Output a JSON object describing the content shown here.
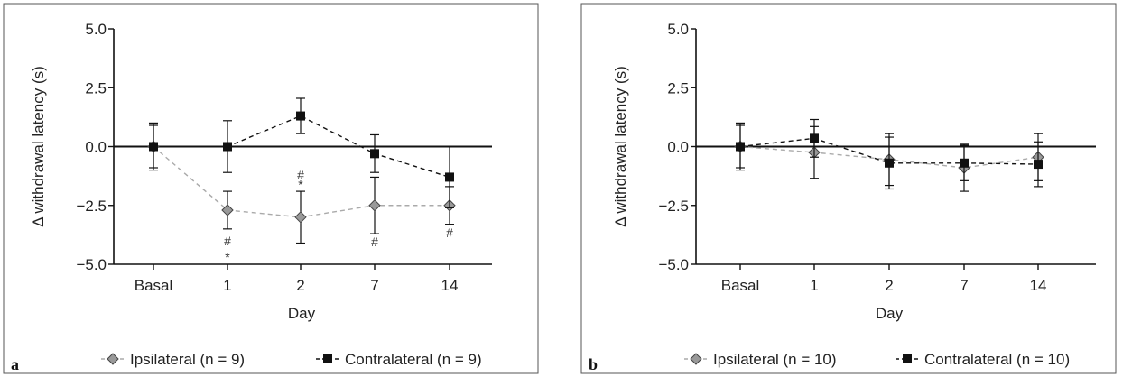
{
  "chart_data": [
    {
      "type": "line",
      "panel": "a",
      "xlabel": "Day",
      "ylabel": "Δ withdrawal latency (s)",
      "categories": [
        "Basal",
        "1",
        "2",
        "7",
        "14"
      ],
      "yticks": [
        "5.0",
        "2.5",
        "0.0",
        "−2.5",
        "−5.0"
      ],
      "ylim": [
        -5.0,
        5.0
      ],
      "series": [
        {
          "name": "Ipsilateral (n = 9)",
          "marker": "diamond",
          "color": "#999999",
          "line_color": "#aaaaaa",
          "values": [
            0.0,
            -2.7,
            -3.0,
            -2.5,
            -2.5
          ],
          "err": [
            1.0,
            0.8,
            1.1,
            1.2,
            0.8
          ],
          "annotations": [
            {
              "index": 1,
              "value": -4.0,
              "label": "#"
            },
            {
              "index": 1,
              "value": -4.7,
              "label": "*"
            },
            {
              "index": 2,
              "value": -1.2,
              "label": "#"
            },
            {
              "index": 2,
              "value": -1.6,
              "label": "*"
            },
            {
              "index": 3,
              "value": -4.05,
              "label": "#"
            },
            {
              "index": 4,
              "value": -3.65,
              "label": "#"
            }
          ]
        },
        {
          "name": "Contralateral (n = 9)",
          "marker": "square",
          "color": "#111111",
          "line_color": "#111111",
          "values": [
            0.0,
            0.0,
            1.3,
            -0.3,
            -1.3
          ],
          "err": [
            0.9,
            1.1,
            0.75,
            0.8,
            1.3
          ],
          "annotations": []
        }
      ]
    },
    {
      "type": "line",
      "panel": "b",
      "xlabel": "Day",
      "ylabel": "Δ withdrawal latency (s)",
      "categories": [
        "Basal",
        "1",
        "2",
        "7",
        "14"
      ],
      "yticks": [
        "5.0",
        "2.5",
        "0.0",
        "−2.5",
        "−5.0"
      ],
      "ylim": [
        -5.0,
        5.0
      ],
      "series": [
        {
          "name": "Ipsilateral (n = 10)",
          "marker": "diamond",
          "color": "#999999",
          "line_color": "#aaaaaa",
          "values": [
            0.0,
            -0.25,
            -0.55,
            -0.9,
            -0.45
          ],
          "err": [
            1.0,
            1.1,
            1.1,
            1.0,
            1.0
          ],
          "annotations": []
        },
        {
          "name": "Contralateral (n = 10)",
          "marker": "square",
          "color": "#111111",
          "line_color": "#111111",
          "values": [
            0.0,
            0.35,
            -0.7,
            -0.7,
            -0.75
          ],
          "err": [
            0.9,
            0.8,
            1.1,
            0.75,
            0.95
          ],
          "annotations": []
        }
      ]
    }
  ]
}
